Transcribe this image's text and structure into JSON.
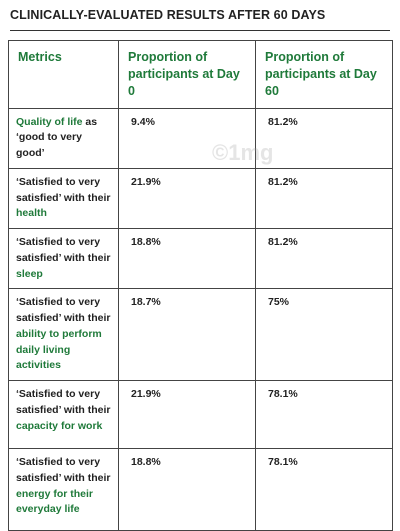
{
  "title": "CLINICALLY-EVALUATED RESULTS AFTER 60 DAYS",
  "watermark": "©1mg",
  "table": {
    "headers": [
      "Metrics",
      "Proportion of participants at Day 0",
      "Proportion of participants at Day 60"
    ],
    "rows": [
      {
        "metric": [
          {
            "text": "Quality of life",
            "highlight": true
          },
          {
            "text": " as ‘good to very good’",
            "highlight": false
          }
        ],
        "day0": "9.4%",
        "day60": "81.2%"
      },
      {
        "metric": [
          {
            "text": "‘Satisfied to very satisfied’ with their ",
            "highlight": false
          },
          {
            "text": "health",
            "highlight": true
          }
        ],
        "day0": "21.9%",
        "day60": "81.2%"
      },
      {
        "metric": [
          {
            "text": "‘Satisfied to very satisfied’ with their ",
            "highlight": false
          },
          {
            "text": "sleep",
            "highlight": true
          }
        ],
        "day0": "18.8%",
        "day60": "81.2%"
      },
      {
        "metric": [
          {
            "text": "‘Satisfied to very satisfied’ with their ",
            "highlight": false
          },
          {
            "text": "ability to perform daily living activities",
            "highlight": true
          }
        ],
        "day0": "18.7%",
        "day60": "75%"
      },
      {
        "metric": [
          {
            "text": "‘Satisfied to very satisfied’ with their ",
            "highlight": false
          },
          {
            "text": "capacity for work",
            "highlight": true
          }
        ],
        "day0": "21.9%",
        "day60": "78.1%"
      },
      {
        "metric": [
          {
            "text": "‘Satisfied to very satisfied’ with their ",
            "highlight": false
          },
          {
            "text": "energy for their everyday life",
            "highlight": true
          }
        ],
        "day0": "18.8%",
        "day60": "78.1%"
      }
    ]
  }
}
